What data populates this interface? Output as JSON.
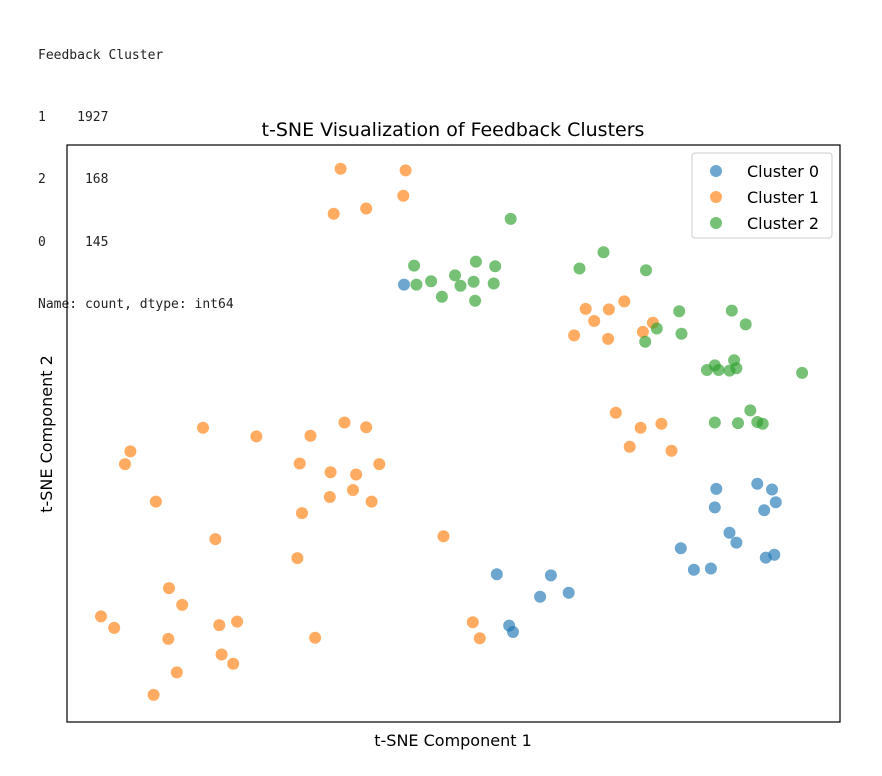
{
  "console_output": {
    "header": "Feedback Cluster",
    "rows": [
      {
        "key": "1",
        "value": "1927"
      },
      {
        "key": "2",
        "value": "168"
      },
      {
        "key": "0",
        "value": "145"
      }
    ],
    "footer": "Name: count, dtype: int64"
  },
  "chart_data": {
    "type": "scatter",
    "title": "t-SNE Visualization of Feedback Clusters",
    "xlabel": "t-SNE Component 1",
    "ylabel": "t-SNE Component 2",
    "xlim": [
      0,
      100
    ],
    "ylim": [
      0,
      100
    ],
    "ticks_visible": false,
    "grid": false,
    "legend_position": "top-right",
    "series": [
      {
        "name": "Cluster 0",
        "color": "#1f77b4",
        "points": [
          [
            43.6,
            75.8
          ],
          [
            55.6,
            25.6
          ],
          [
            57.2,
            16.7
          ],
          [
            57.7,
            15.6
          ],
          [
            61.2,
            21.7
          ],
          [
            64.9,
            22.4
          ],
          [
            62.6,
            25.4
          ],
          [
            81.1,
            26.4
          ],
          [
            83.3,
            26.6
          ],
          [
            79.4,
            30.1
          ],
          [
            83.8,
            37.2
          ],
          [
            85.7,
            32.8
          ],
          [
            86.6,
            31.1
          ],
          [
            90.2,
            36.7
          ],
          [
            90.4,
            28.5
          ],
          [
            91.5,
            29.0
          ],
          [
            89.3,
            41.3
          ],
          [
            91.7,
            38.1
          ],
          [
            91.2,
            40.3
          ],
          [
            84.0,
            40.4
          ]
        ]
      },
      {
        "name": "Cluster 1",
        "color": "#ff7f0e",
        "points": [
          [
            35.4,
            95.9
          ],
          [
            43.8,
            95.6
          ],
          [
            34.5,
            88.1
          ],
          [
            38.7,
            89.0
          ],
          [
            43.5,
            91.2
          ],
          [
            17.6,
            51.0
          ],
          [
            24.5,
            49.5
          ],
          [
            31.5,
            49.6
          ],
          [
            35.9,
            51.9
          ],
          [
            38.7,
            51.1
          ],
          [
            8.2,
            46.9
          ],
          [
            7.5,
            44.7
          ],
          [
            11.5,
            38.2
          ],
          [
            30.1,
            44.8
          ],
          [
            34.1,
            43.3
          ],
          [
            37.4,
            42.9
          ],
          [
            40.4,
            44.7
          ],
          [
            34.0,
            39.0
          ],
          [
            37.0,
            40.2
          ],
          [
            39.4,
            38.2
          ],
          [
            30.4,
            36.2
          ],
          [
            19.2,
            31.7
          ],
          [
            29.8,
            28.4
          ],
          [
            48.7,
            32.2
          ],
          [
            13.2,
            23.2
          ],
          [
            14.9,
            20.3
          ],
          [
            4.4,
            18.3
          ],
          [
            6.1,
            16.3
          ],
          [
            13.1,
            14.4
          ],
          [
            19.7,
            16.8
          ],
          [
            22.0,
            17.4
          ],
          [
            32.1,
            14.6
          ],
          [
            20.0,
            11.7
          ],
          [
            21.5,
            10.1
          ],
          [
            14.2,
            8.6
          ],
          [
            11.2,
            4.7
          ],
          [
            52.5,
            17.3
          ],
          [
            53.4,
            14.5
          ],
          [
            65.6,
            67.0
          ],
          [
            67.1,
            71.6
          ],
          [
            68.2,
            69.5
          ],
          [
            70.1,
            71.5
          ],
          [
            72.1,
            72.9
          ],
          [
            70.0,
            66.4
          ],
          [
            75.8,
            69.2
          ],
          [
            74.5,
            67.6
          ],
          [
            71.0,
            53.6
          ],
          [
            74.2,
            51.0
          ],
          [
            76.9,
            51.7
          ],
          [
            72.8,
            47.7
          ],
          [
            78.2,
            47.0
          ]
        ]
      },
      {
        "name": "Cluster 2",
        "color": "#2ca02c",
        "points": [
          [
            57.4,
            87.2
          ],
          [
            44.9,
            79.1
          ],
          [
            47.1,
            76.4
          ],
          [
            48.5,
            73.7
          ],
          [
            50.2,
            77.4
          ],
          [
            50.9,
            75.6
          ],
          [
            52.9,
            79.8
          ],
          [
            52.6,
            76.3
          ],
          [
            55.4,
            79.0
          ],
          [
            55.2,
            76.0
          ],
          [
            45.2,
            75.8
          ],
          [
            52.8,
            73.0
          ],
          [
            69.4,
            81.4
          ],
          [
            66.3,
            78.6
          ],
          [
            74.9,
            78.3
          ],
          [
            79.2,
            71.2
          ],
          [
            76.3,
            68.2
          ],
          [
            74.8,
            65.9
          ],
          [
            86.0,
            71.3
          ],
          [
            87.8,
            68.9
          ],
          [
            79.5,
            67.3
          ],
          [
            83.8,
            61.8
          ],
          [
            84.3,
            61.0
          ],
          [
            86.3,
            62.7
          ],
          [
            85.7,
            60.9
          ],
          [
            86.6,
            61.3
          ],
          [
            95.1,
            60.5
          ],
          [
            88.4,
            54.0
          ],
          [
            83.8,
            51.9
          ],
          [
            86.8,
            51.8
          ],
          [
            89.3,
            52.0
          ],
          [
            90.0,
            51.7
          ],
          [
            82.8,
            61.0
          ]
        ]
      }
    ],
    "value_counts": [
      {
        "cluster": "1",
        "count": 1927
      },
      {
        "cluster": "2",
        "count": 168
      },
      {
        "cluster": "0",
        "count": 145
      }
    ]
  },
  "legend": {
    "items": [
      {
        "label": "Cluster 0",
        "color": "#1f77b4"
      },
      {
        "label": "Cluster 1",
        "color": "#ff7f0e"
      },
      {
        "label": "Cluster 2",
        "color": "#2ca02c"
      }
    ]
  }
}
